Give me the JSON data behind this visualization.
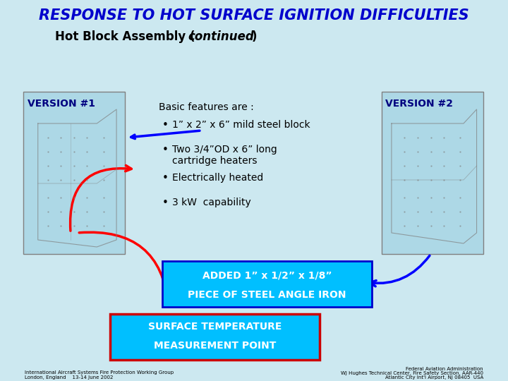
{
  "background_color": "#cce8f0",
  "title": "RESPONSE TO HOT SURFACE IGNITION DIFFICULTIES",
  "title_color": "#0000cc",
  "title_fontsize": 15,
  "subtitle": "Hot Block Assembly (",
  "subtitle_italic": "continued",
  "subtitle_end": ")",
  "subtitle_fontsize": 12,
  "version1_label": "VERSION #1",
  "version2_label": "VERSION #2",
  "version_box_color": "#add8e6",
  "version_text_color": "#000080",
  "features_title": "Basic features are :",
  "bullets": [
    "1” x 2” x 6” mild steel block",
    "Two 3/4”OD x 6” long\ncartridge heaters",
    "Electrically heated",
    "3 kW  capability"
  ],
  "added_box_text1": "ADDED 1” x 1/2” x 1/8”",
  "added_box_text2": "PIECE OF STEEL ANGLE IRON",
  "added_box_color": "#00bfff",
  "added_box_border": "#0000cc",
  "surface_box_text1": "SURFACE TEMPERATURE",
  "surface_box_text2": "MEASUREMENT POINT",
  "surface_box_color": "#00bfff",
  "surface_box_border": "#cc0000",
  "footer_left1": "International Aircraft Systems Fire Protection Working Group",
  "footer_left2": "London, England    13-14 June 2002",
  "footer_right1": "Federal Aviation Administration",
  "footer_right2": "WJ Hughes Technical Center, Fire Safety Section, AAR-440",
  "footer_right3": "Atlantic City Int'l Airport, NJ 08405  USA"
}
